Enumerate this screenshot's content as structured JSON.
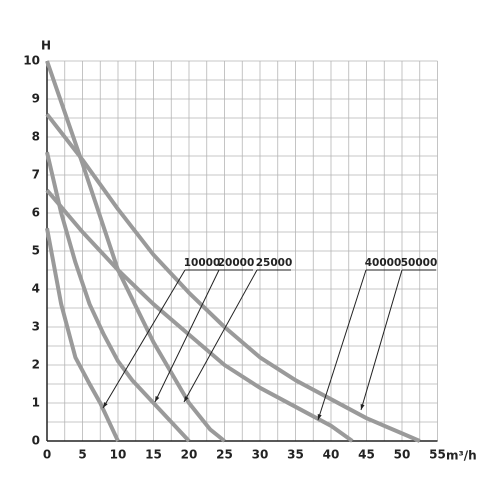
{
  "chart_data": {
    "type": "line",
    "x_label": "m³/h",
    "y_label": "H",
    "xlim": [
      0,
      55
    ],
    "ylim": [
      0,
      10
    ],
    "xticks": [
      0,
      5,
      10,
      15,
      20,
      25,
      30,
      35,
      40,
      45,
      50,
      55
    ],
    "yticks": [
      0,
      1,
      2,
      3,
      4,
      5,
      6,
      7,
      8,
      9,
      10
    ],
    "grid": true,
    "series": [
      {
        "name": "10000",
        "color": "#9a9a9a",
        "x": [
          0,
          2,
          4,
          6,
          7.5,
          9,
          10
        ],
        "values": [
          5.6,
          3.6,
          2.2,
          1.5,
          1,
          0.4,
          0
        ]
      },
      {
        "name": "20000",
        "color": "#9a9a9a",
        "x": [
          0,
          2,
          4,
          6,
          8,
          10,
          12,
          15,
          18,
          20
        ],
        "values": [
          7.6,
          6,
          4.7,
          3.6,
          2.8,
          2.1,
          1.6,
          1,
          0.4,
          0
        ]
      },
      {
        "name": "25000",
        "color": "#9a9a9a",
        "x": [
          0,
          5,
          10,
          15,
          20,
          23,
          25
        ],
        "values": [
          10,
          7.3,
          4.5,
          2.6,
          1,
          0.3,
          0
        ]
      },
      {
        "name": "40000",
        "color": "#9a9a9a",
        "x": [
          0,
          5,
          10,
          15,
          20,
          25,
          30,
          35,
          40,
          43
        ],
        "values": [
          6.6,
          5.5,
          4.5,
          3.6,
          2.8,
          2,
          1.4,
          0.9,
          0.4,
          0
        ]
      },
      {
        "name": "50000",
        "color": "#9a9a9a",
        "x": [
          0,
          5,
          10,
          15,
          20,
          25,
          30,
          35,
          40,
          45,
          50,
          52.5
        ],
        "values": [
          8.6,
          7.4,
          6.1,
          4.9,
          3.9,
          3,
          2.2,
          1.6,
          1.1,
          0.6,
          0.2,
          0
        ]
      }
    ]
  }
}
